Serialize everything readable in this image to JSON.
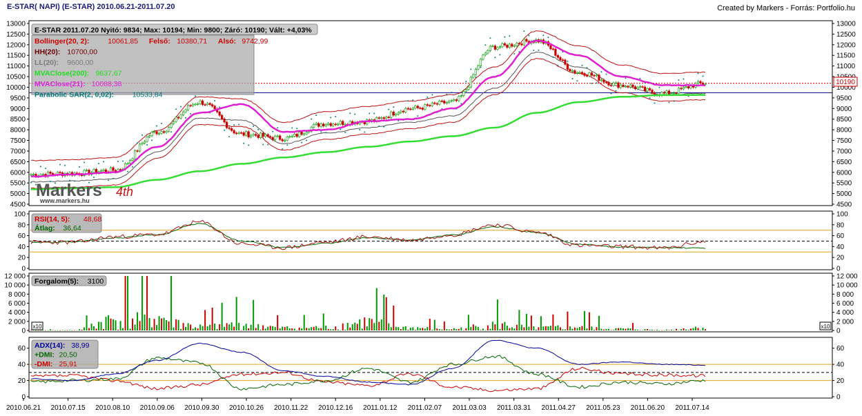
{
  "header": {
    "title": "E-STAR( NAPI)  (E-STAR)  2010.06.21-2011.07.20",
    "credit": "Created by Markers - Forrás: Portfolio.hu"
  },
  "logo": {
    "brand": "Markers",
    "url": "www.markers.hu"
  },
  "x_labels": [
    "2010.06.21",
    "2010.07.15",
    "2010.08.10",
    "2010.09.06",
    "2010.09.30",
    "2010.10.26",
    "2010.11.22",
    "2010.12.16",
    "2011.01.12",
    "2011.02.07",
    "2011.03.03",
    "2011.03.31",
    "2011.04.27",
    "2011.05.23",
    "2011.06.20",
    "2011.07.14"
  ],
  "price_panel": {
    "info": "E-STAR 2011.07.20 Nyitó: 9834; Max: 10194; Min: 9800; Záró: 10190; Vált: +4,03%",
    "last_price_tag": "10190",
    "legend": [
      {
        "label": "Bollinger(20, 2):",
        "value": "10061,85",
        "extra": [
          {
            "label": "Felső:",
            "value": "10380,71"
          },
          {
            "label": "Alsó:",
            "value": "9742,99"
          }
        ],
        "color": "#cc0000"
      },
      {
        "label": "HH(20):",
        "value": "10700,00",
        "color": "#6b0000"
      },
      {
        "label": "LL(20):",
        "value": "9600,00",
        "color": "#7a7a7a"
      },
      {
        "label": "MVAClose(200):",
        "value": "9637,67",
        "color": "#22dd22"
      },
      {
        "label": "MVAClose(21):",
        "value": "10088,38",
        "color": "#dd22dd"
      },
      {
        "label": "Parabolic SAR(2, 0,02):",
        "value": "10533,84",
        "color": "#007777"
      }
    ],
    "colors": {
      "up": "#009900",
      "down": "#cc0000",
      "ma21": "#e020d0",
      "ma200": "#33dd33",
      "bollinger": "#bb1111",
      "hhll": "#555555",
      "sar": "#008080",
      "resistance": "#cc0000",
      "support": "#000080"
    }
  },
  "rsi_panel": {
    "legend": [
      {
        "label": "RSI(14, 5):",
        "value": "48,68",
        "color": "#cc0000"
      },
      {
        "label": "Átlag:",
        "value": "36,64",
        "color": "#006600"
      }
    ]
  },
  "volume_panel": {
    "legend": [
      {
        "label": "Forgalom(5):",
        "value": "3100",
        "color": "#000000"
      }
    ],
    "badge": "x10"
  },
  "adx_panel": {
    "legend": [
      {
        "label": "ADX(14):",
        "value": "38,99",
        "color": "#000099"
      },
      {
        "label": "+DMI:",
        "value": "20,50",
        "color": "#006600"
      },
      {
        "label": "-DMI:",
        "value": "25,91",
        "color": "#cc0000"
      }
    ]
  },
  "chart_data": [
    {
      "type": "line",
      "title": "E-STAR( NAPI)  (E-STAR)  2010.06.21-2011.07.20",
      "x": [
        "2010.06.21",
        "2010.07.15",
        "2010.08.10",
        "2010.09.06",
        "2010.09.30",
        "2010.10.26",
        "2010.11.22",
        "2010.12.16",
        "2011.01.12",
        "2011.02.07",
        "2011.03.03",
        "2011.03.31",
        "2011.04.27",
        "2011.05.23",
        "2011.06.20",
        "2011.07.14",
        "2011.07.20"
      ],
      "ylim": [
        4500,
        13000
      ],
      "yticks": [
        4500,
        5000,
        5500,
        6000,
        6500,
        7000,
        7500,
        8000,
        8500,
        9000,
        9500,
        10000,
        10500,
        11000,
        11500,
        12000,
        12500,
        13000
      ],
      "series": [
        {
          "name": "E-STAR 2011.07.20",
          "values": [
            5900,
            5950,
            6100,
            7900,
            9300,
            7800,
            7600,
            8300,
            8400,
            9000,
            9300,
            11900,
            12200,
            10700,
            10100,
            9700,
            10190
          ]
        },
        {
          "name": "MVAClose(21):",
          "values": [
            5800,
            5900,
            6000,
            7200,
            8800,
            9200,
            7900,
            8000,
            8400,
            8500,
            9000,
            10500,
            12200,
            11500,
            10500,
            10100,
            10088
          ]
        },
        {
          "name": "MVAClose(200):",
          "values": [
            5200,
            5250,
            5300,
            5650,
            6050,
            6400,
            6700,
            6950,
            7200,
            7450,
            7700,
            8100,
            8800,
            9300,
            9550,
            9630,
            9638
          ]
        },
        {
          "name": "Bollinger(20, 2):",
          "values": [
            5900,
            5950,
            6050,
            7300,
            8900,
            8800,
            7700,
            8200,
            8450,
            8700,
            9000,
            10300,
            12000,
            11300,
            10400,
            10000,
            10062
          ]
        }
      ]
    },
    {
      "type": "line",
      "x": [
        "2010.06.21",
        "2010.07.15",
        "2010.08.10",
        "2010.09.06",
        "2010.09.30",
        "2010.10.26",
        "2010.11.22",
        "2010.12.16",
        "2011.01.12",
        "2011.02.07",
        "2011.03.03",
        "2011.03.31",
        "2011.04.27",
        "2011.05.23",
        "2011.06.20",
        "2011.07.14",
        "2011.07.20"
      ],
      "ylim": [
        0,
        100
      ],
      "yticks": [
        0,
        20,
        40,
        60,
        80,
        100
      ],
      "series": [
        {
          "name": "RSI(14, 5):",
          "values": [
            48,
            48,
            58,
            62,
            85,
            45,
            38,
            48,
            58,
            52,
            62,
            80,
            66,
            42,
            40,
            37,
            49
          ]
        },
        {
          "name": "Átlag:",
          "values": [
            47,
            49,
            56,
            62,
            82,
            50,
            38,
            46,
            56,
            52,
            61,
            76,
            66,
            44,
            39,
            38,
            37
          ]
        }
      ]
    },
    {
      "type": "bar",
      "x": [
        "2010.06.21",
        "2010.07.15",
        "2010.08.10",
        "2010.09.06",
        "2010.09.30",
        "2010.10.26",
        "2010.11.22",
        "2010.12.16",
        "2011.01.12",
        "2011.02.07",
        "2011.03.03",
        "2011.03.31",
        "2011.04.27",
        "2011.05.23",
        "2011.06.20",
        "2011.07.14",
        "2011.07.20"
      ],
      "ylim": [
        0,
        12000
      ],
      "yticks": [
        0,
        2000,
        4000,
        6000,
        8000,
        10000,
        12000
      ],
      "series": [
        {
          "name": "Forgalom(5):",
          "values": [
            150,
            300,
            10500,
            12000,
            3500,
            6000,
            2500,
            3000,
            8000,
            2500,
            1500,
            5500,
            2500,
            3500,
            1500,
            500,
            3100
          ]
        }
      ]
    },
    {
      "type": "line",
      "x": [
        "2010.06.21",
        "2010.07.15",
        "2010.08.10",
        "2010.09.06",
        "2010.09.30",
        "2010.10.26",
        "2010.11.22",
        "2010.12.16",
        "2011.01.12",
        "2011.02.07",
        "2011.03.03",
        "2011.03.31",
        "2011.04.27",
        "2011.05.23",
        "2011.06.20",
        "2011.07.14",
        "2011.07.20"
      ],
      "ylim": [
        0,
        70
      ],
      "yticks": [
        0,
        20,
        40,
        60
      ],
      "series": [
        {
          "name": "ADX(14):",
          "values": [
            22,
            20,
            28,
            45,
            66,
            55,
            32,
            25,
            18,
            15,
            35,
            70,
            60,
            40,
            43,
            40,
            39
          ]
        },
        {
          "name": "+DMI:",
          "values": [
            18,
            20,
            22,
            48,
            42,
            10,
            15,
            20,
            35,
            18,
            40,
            50,
            28,
            12,
            18,
            16,
            20
          ]
        },
        {
          "name": "-DMI:",
          "values": [
            25,
            26,
            20,
            10,
            15,
            28,
            30,
            18,
            14,
            28,
            12,
            8,
            10,
            35,
            28,
            27,
            26
          ]
        }
      ]
    }
  ]
}
